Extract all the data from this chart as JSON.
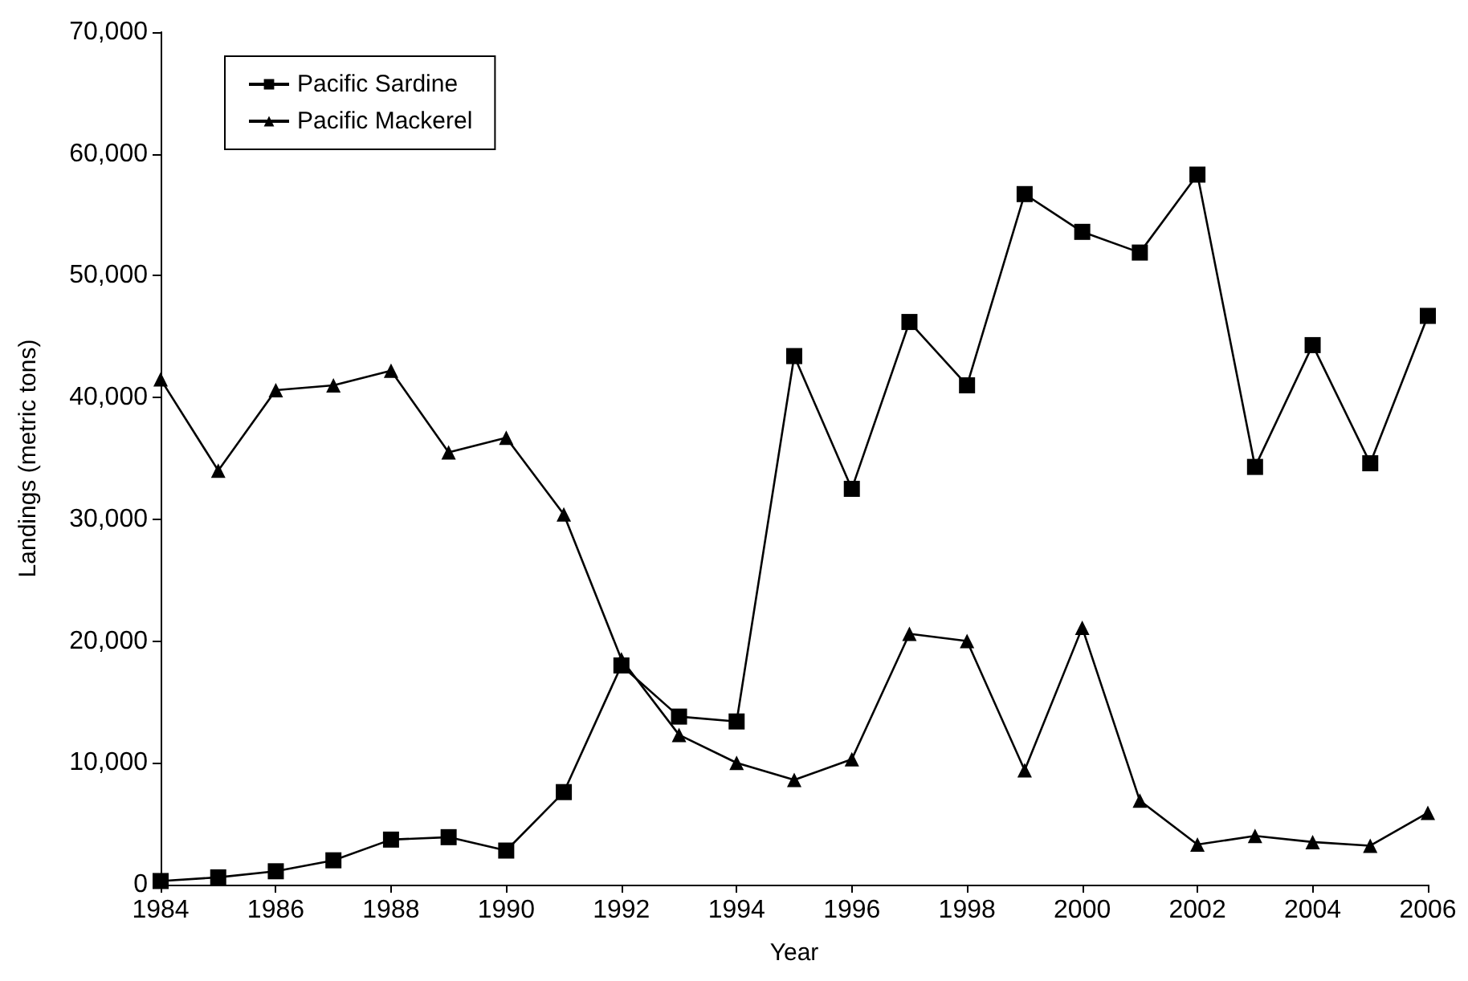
{
  "chart_data": {
    "type": "line",
    "xlabel": "Year",
    "ylabel": "Landings (metric tons)",
    "x": [
      1984,
      1985,
      1986,
      1987,
      1988,
      1989,
      1990,
      1991,
      1992,
      1993,
      1994,
      1995,
      1996,
      1997,
      1998,
      1999,
      2000,
      2001,
      2002,
      2003,
      2004,
      2005,
      2006
    ],
    "series": [
      {
        "name": "Pacific Sardine",
        "color": "#000000",
        "marker": "square",
        "values": [
          300,
          600,
          1100,
          2000,
          3700,
          3900,
          2800,
          7600,
          18000,
          13800,
          13400,
          43400,
          32500,
          46200,
          41000,
          56700,
          53600,
          51900,
          58300,
          34300,
          44300,
          34600,
          46700
        ]
      },
      {
        "name": "Pacific Mackerel",
        "color": "#000000",
        "marker": "triangle",
        "values": [
          41500,
          34000,
          40600,
          41000,
          42200,
          35500,
          36700,
          30400,
          18500,
          12300,
          10000,
          8600,
          10300,
          20600,
          20000,
          9400,
          21100,
          6900,
          3300,
          4000,
          3500,
          3200,
          5900
        ]
      }
    ],
    "xlim": [
      1984,
      2006
    ],
    "xticks": [
      1984,
      1986,
      1988,
      1990,
      1992,
      1994,
      1996,
      1998,
      2000,
      2002,
      2004,
      2006
    ],
    "ylim": [
      0,
      70000
    ],
    "yticks": [
      0,
      {
        "value": 10000,
        "label": "10,000"
      },
      {
        "value": 20000,
        "label": "20,000"
      },
      {
        "value": 30000,
        "label": "30,000"
      },
      {
        "value": 40000,
        "label": "40,000"
      },
      {
        "value": 50000,
        "label": "50,000"
      },
      {
        "value": 60000,
        "label": "60,000"
      },
      {
        "value": 70000,
        "label": "70,000"
      }
    ],
    "grid": false,
    "legend": "top left",
    "line_style": "solid"
  }
}
